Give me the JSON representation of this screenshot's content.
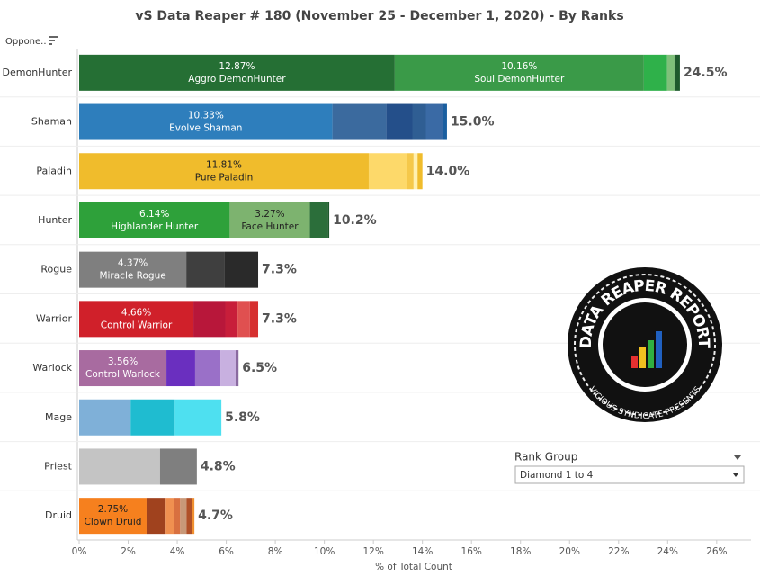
{
  "chart_data": {
    "type": "bar",
    "orientation": "horizontal",
    "title": "vS Data Reaper #  180 (November 25 - December 1, 2020) - By Ranks",
    "row_header": "Oppone..",
    "x_label": "% of Total Count",
    "xlim": [
      0,
      27.4
    ],
    "xticks": [
      {
        "value": 0,
        "label": "0%"
      },
      {
        "value": 2,
        "label": "2%"
      },
      {
        "value": 4,
        "label": "4%"
      },
      {
        "value": 6,
        "label": "6%"
      },
      {
        "value": 8,
        "label": "8%"
      },
      {
        "value": 10,
        "label": "10%"
      },
      {
        "value": 12,
        "label": "12%"
      },
      {
        "value": 14,
        "label": "14%"
      },
      {
        "value": 16,
        "label": "16%"
      },
      {
        "value": 18,
        "label": "18%"
      },
      {
        "value": 20,
        "label": "20%"
      },
      {
        "value": 22,
        "label": "22%"
      },
      {
        "value": 24,
        "label": "24%"
      },
      {
        "value": 26,
        "label": "26%"
      }
    ],
    "stacks": [
      {
        "category": "DemonHunter",
        "total": 24.5,
        "total_label": "24.5%",
        "segments": [
          {
            "value": 12.87,
            "value_label": "12.87%",
            "name": "Aggro DemonHunter",
            "color": "#256f34",
            "text_color": "#fff"
          },
          {
            "value": 10.16,
            "value_label": "10.16%",
            "name": "Soul DemonHunter",
            "color": "#3a9a48",
            "text_color": "#fff"
          },
          {
            "value": 0.95,
            "color": "#2fb14a"
          },
          {
            "value": 0.3,
            "color": "#7fc07a"
          },
          {
            "value": 0.22,
            "color": "#1e5a2d"
          }
        ]
      },
      {
        "category": "Shaman",
        "total": 15.0,
        "total_label": "15.0%",
        "segments": [
          {
            "value": 10.33,
            "value_label": "10.33%",
            "name": "Evolve Shaman",
            "color": "#2e7ebc",
            "text_color": "#fff"
          },
          {
            "value": 2.2,
            "color": "#3b6a9e"
          },
          {
            "value": 1.06,
            "color": "#244f8a"
          },
          {
            "value": 0.55,
            "color": "#2f5e93"
          },
          {
            "value": 0.7,
            "color": "#3a6aa5"
          },
          {
            "value": 0.16,
            "color": "#1a5fa0"
          }
        ]
      },
      {
        "category": "Paladin",
        "total": 14.0,
        "total_label": "14.0%",
        "segments": [
          {
            "value": 11.81,
            "value_label": "11.81%",
            "name": "Pure Paladin",
            "color": "#f0bc2c",
            "text_color": "#222"
          },
          {
            "value": 1.55,
            "color": "#fdd96a"
          },
          {
            "value": 0.28,
            "color": "#f5c84a"
          },
          {
            "value": 0.16,
            "color": "#fff0b0"
          },
          {
            "value": 0.2,
            "color": "#f0bc2c"
          }
        ]
      },
      {
        "category": "Hunter",
        "total": 10.2,
        "total_label": "10.2%",
        "segments": [
          {
            "value": 6.14,
            "value_label": "6.14%",
            "name": "Highlander Hunter",
            "color": "#2ea13a",
            "text_color": "#fff"
          },
          {
            "value": 3.27,
            "value_label": "3.27%",
            "name": "Face Hunter",
            "color": "#7db36f",
            "text_color": "#222"
          },
          {
            "value": 0.72,
            "color": "#2b6e3a"
          },
          {
            "value": 0.07,
            "color": "#1e5a2d"
          }
        ]
      },
      {
        "category": "Rogue",
        "total": 7.3,
        "total_label": "7.3%",
        "segments": [
          {
            "value": 4.37,
            "value_label": "4.37%",
            "name": "Miracle Rogue",
            "color": "#7f7f7f",
            "text_color": "#fff"
          },
          {
            "value": 1.57,
            "color": "#3f3f3f"
          },
          {
            "value": 1.36,
            "color": "#2a2a2a"
          }
        ]
      },
      {
        "category": "Warrior",
        "total": 7.3,
        "total_label": "7.3%",
        "segments": [
          {
            "value": 4.66,
            "value_label": "4.66%",
            "name": "Control Warrior",
            "color": "#d0202a",
            "text_color": "#fff"
          },
          {
            "value": 1.3,
            "color": "#b8173a"
          },
          {
            "value": 0.5,
            "color": "#c81e3a"
          },
          {
            "value": 0.5,
            "color": "#e05050"
          },
          {
            "value": 0.34,
            "color": "#d63030"
          }
        ]
      },
      {
        "category": "Warlock",
        "total": 6.5,
        "total_label": "6.5%",
        "segments": [
          {
            "value": 3.56,
            "value_label": "3.56%",
            "name": "Control Warlock",
            "color": "#a86ba0",
            "text_color": "#fff"
          },
          {
            "value": 1.17,
            "color": "#6a2fbf"
          },
          {
            "value": 1.03,
            "color": "#9a70c8"
          },
          {
            "value": 0.62,
            "color": "#c8b0e0"
          },
          {
            "value": 0.12,
            "color": "#8a6aa0"
          }
        ]
      },
      {
        "category": "Mage",
        "total": 5.8,
        "total_label": "5.8%",
        "segments": [
          {
            "value": 2.1,
            "color": "#7fb0d8"
          },
          {
            "value": 1.8,
            "color": "#1fbcd0"
          },
          {
            "value": 1.9,
            "color": "#4ee0f0"
          }
        ]
      },
      {
        "category": "Priest",
        "total": 4.8,
        "total_label": "4.8%",
        "segments": [
          {
            "value": 3.3,
            "color": "#c4c4c4"
          },
          {
            "value": 1.5,
            "color": "#7f7f7f"
          }
        ]
      },
      {
        "category": "Druid",
        "total": 4.7,
        "total_label": "4.7%",
        "segments": [
          {
            "value": 2.75,
            "value_label": "2.75%",
            "name": "Clown Druid",
            "color": "#f6801e",
            "text_color": "#222"
          },
          {
            "value": 0.78,
            "color": "#a0421e"
          },
          {
            "value": 0.33,
            "color": "#f09050"
          },
          {
            "value": 0.26,
            "color": "#d87040"
          },
          {
            "value": 0.26,
            "color": "#c89878"
          },
          {
            "value": 0.22,
            "color": "#b05028"
          },
          {
            "value": 0.1,
            "color": "#f09030"
          }
        ]
      }
    ]
  },
  "filter": {
    "title": "Rank Group",
    "selected": "Diamond 1 to 4"
  },
  "logo": {
    "top": "DATA REAPER REPORT",
    "bottom": "VICIOUS SYNDICATE PRESENTS"
  }
}
